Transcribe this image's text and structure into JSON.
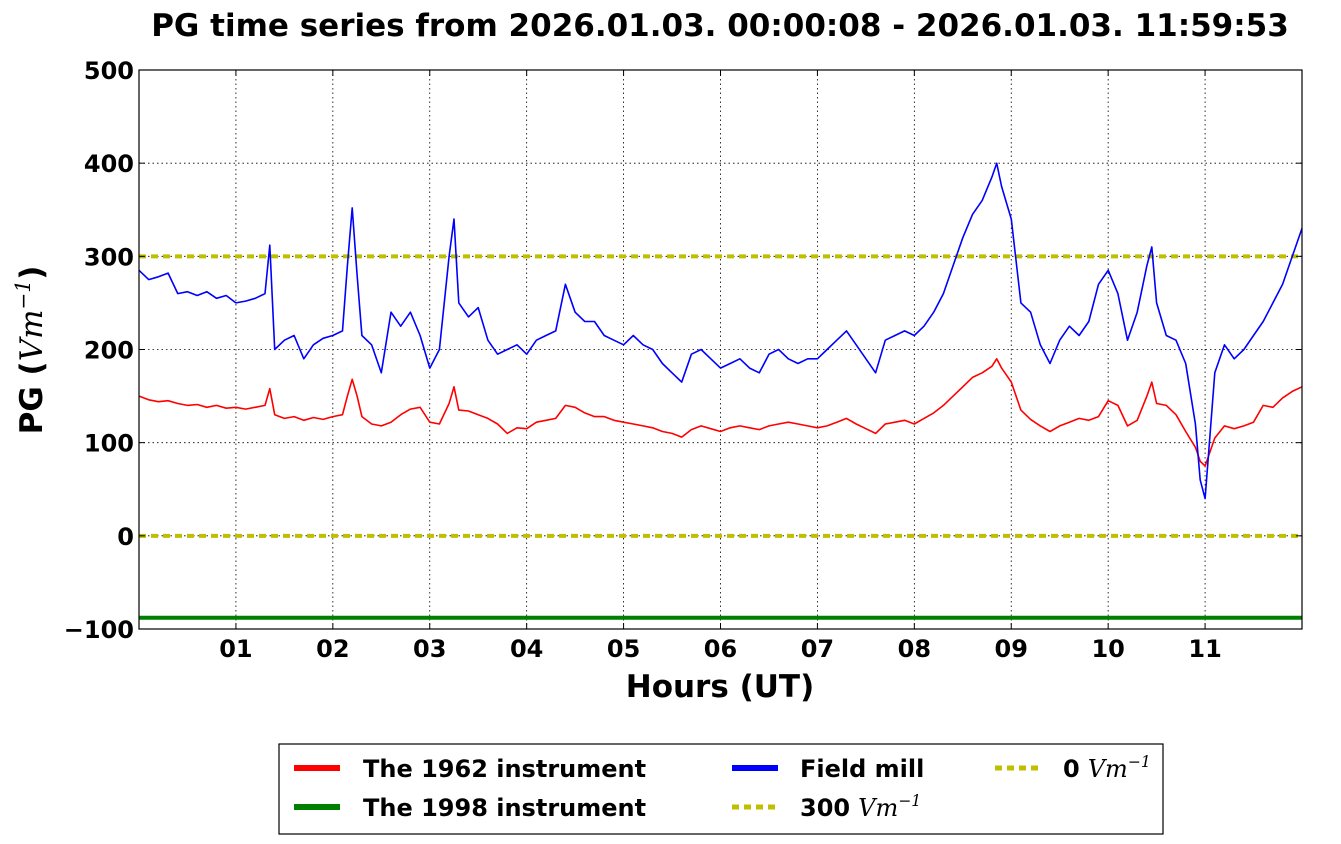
{
  "chart_data": {
    "type": "line",
    "title": "PG time series from 2026.01.03. 00:00:08 - 2026.01.03. 11:59:53",
    "xlabel": "Hours (UT)",
    "ylabel": {
      "prefix": "PG (",
      "unit": "Vm",
      "exponent": "−1",
      "suffix": ")"
    },
    "xlim": [
      0,
      12
    ],
    "ylim": [
      -100,
      500
    ],
    "xticks": [
      1,
      2,
      3,
      4,
      5,
      6,
      7,
      8,
      9,
      10,
      11
    ],
    "xtick_labels": [
      "01",
      "02",
      "03",
      "04",
      "05",
      "06",
      "07",
      "08",
      "09",
      "10",
      "11"
    ],
    "yticks": [
      -100,
      0,
      100,
      200,
      300,
      400,
      500
    ],
    "ytick_labels": [
      "−100",
      "0",
      "100",
      "200",
      "300",
      "400",
      "500"
    ],
    "grid": true,
    "legend_position": "bottom-center",
    "series": [
      {
        "name": "The 1962 instrument",
        "color": "#ff0000",
        "x": [
          0.0,
          0.1,
          0.2,
          0.3,
          0.4,
          0.5,
          0.6,
          0.7,
          0.8,
          0.9,
          1.0,
          1.1,
          1.2,
          1.3,
          1.35,
          1.4,
          1.5,
          1.6,
          1.7,
          1.8,
          1.9,
          2.0,
          2.1,
          2.15,
          2.2,
          2.25,
          2.3,
          2.4,
          2.5,
          2.6,
          2.7,
          2.8,
          2.9,
          3.0,
          3.1,
          3.2,
          3.25,
          3.3,
          3.4,
          3.5,
          3.6,
          3.7,
          3.8,
          3.9,
          4.0,
          4.1,
          4.2,
          4.3,
          4.4,
          4.5,
          4.6,
          4.7,
          4.8,
          4.9,
          5.0,
          5.1,
          5.2,
          5.3,
          5.4,
          5.5,
          5.6,
          5.7,
          5.8,
          5.9,
          6.0,
          6.1,
          6.2,
          6.3,
          6.4,
          6.5,
          6.6,
          6.7,
          6.8,
          6.9,
          7.0,
          7.1,
          7.2,
          7.3,
          7.4,
          7.5,
          7.6,
          7.7,
          7.8,
          7.9,
          8.0,
          8.1,
          8.2,
          8.3,
          8.4,
          8.5,
          8.6,
          8.7,
          8.8,
          8.85,
          8.9,
          9.0,
          9.1,
          9.2,
          9.3,
          9.4,
          9.5,
          9.6,
          9.7,
          9.8,
          9.9,
          10.0,
          10.1,
          10.2,
          10.3,
          10.4,
          10.45,
          10.5,
          10.6,
          10.7,
          10.8,
          10.9,
          10.95,
          11.0,
          11.1,
          11.2,
          11.3,
          11.4,
          11.5,
          11.6,
          11.7,
          11.8,
          11.9,
          12.0
        ],
        "y": [
          150,
          146,
          144,
          145,
          142,
          140,
          141,
          138,
          140,
          137,
          138,
          136,
          138,
          140,
          158,
          130,
          126,
          128,
          124,
          127,
          125,
          128,
          130,
          150,
          168,
          150,
          128,
          120,
          118,
          122,
          130,
          136,
          138,
          122,
          120,
          142,
          160,
          135,
          134,
          130,
          126,
          120,
          110,
          116,
          115,
          122,
          124,
          126,
          140,
          138,
          132,
          128,
          128,
          124,
          122,
          120,
          118,
          116,
          112,
          110,
          106,
          114,
          118,
          115,
          112,
          116,
          118,
          116,
          114,
          118,
          120,
          122,
          120,
          118,
          116,
          118,
          122,
          126,
          120,
          115,
          110,
          120,
          122,
          124,
          120,
          126,
          132,
          140,
          150,
          160,
          170,
          175,
          182,
          190,
          180,
          165,
          135,
          125,
          118,
          112,
          118,
          122,
          126,
          124,
          128,
          145,
          140,
          118,
          124,
          150,
          165,
          142,
          140,
          130,
          112,
          95,
          80,
          75,
          105,
          118,
          115,
          118,
          122,
          140,
          138,
          148,
          155,
          160
        ]
      },
      {
        "name": "The 1998 instrument",
        "color": "#008000",
        "x": [
          0,
          12
        ],
        "y": [
          -88,
          -88
        ]
      },
      {
        "name": "Field mill",
        "color": "#0000ff",
        "x": [
          0.0,
          0.1,
          0.2,
          0.3,
          0.4,
          0.5,
          0.6,
          0.7,
          0.8,
          0.9,
          1.0,
          1.1,
          1.2,
          1.3,
          1.35,
          1.4,
          1.5,
          1.6,
          1.7,
          1.8,
          1.9,
          2.0,
          2.1,
          2.15,
          2.2,
          2.25,
          2.3,
          2.4,
          2.5,
          2.6,
          2.7,
          2.8,
          2.9,
          3.0,
          3.1,
          3.2,
          3.25,
          3.3,
          3.4,
          3.5,
          3.6,
          3.7,
          3.8,
          3.9,
          4.0,
          4.1,
          4.2,
          4.3,
          4.4,
          4.5,
          4.6,
          4.7,
          4.8,
          4.9,
          5.0,
          5.1,
          5.2,
          5.3,
          5.4,
          5.5,
          5.6,
          5.7,
          5.8,
          5.9,
          6.0,
          6.1,
          6.2,
          6.3,
          6.4,
          6.5,
          6.6,
          6.7,
          6.8,
          6.9,
          7.0,
          7.1,
          7.2,
          7.3,
          7.4,
          7.5,
          7.6,
          7.7,
          7.8,
          7.9,
          8.0,
          8.1,
          8.2,
          8.3,
          8.4,
          8.5,
          8.6,
          8.7,
          8.8,
          8.85,
          8.9,
          9.0,
          9.1,
          9.2,
          9.3,
          9.4,
          9.5,
          9.6,
          9.7,
          9.8,
          9.9,
          10.0,
          10.1,
          10.2,
          10.3,
          10.4,
          10.45,
          10.5,
          10.6,
          10.7,
          10.8,
          10.9,
          10.95,
          11.0,
          11.1,
          11.2,
          11.3,
          11.4,
          11.5,
          11.6,
          11.7,
          11.8,
          11.9,
          12.0
        ],
        "y": [
          285,
          275,
          278,
          282,
          260,
          262,
          258,
          262,
          255,
          258,
          250,
          252,
          255,
          260,
          312,
          200,
          210,
          215,
          190,
          205,
          212,
          215,
          220,
          290,
          352,
          280,
          215,
          205,
          175,
          240,
          225,
          240,
          215,
          180,
          200,
          300,
          340,
          250,
          235,
          245,
          210,
          195,
          200,
          205,
          195,
          210,
          215,
          220,
          270,
          240,
          230,
          230,
          215,
          210,
          205,
          215,
          205,
          200,
          185,
          175,
          165,
          195,
          200,
          190,
          180,
          185,
          190,
          180,
          175,
          195,
          200,
          190,
          185,
          190,
          190,
          200,
          210,
          220,
          205,
          190,
          175,
          210,
          215,
          220,
          215,
          225,
          240,
          260,
          290,
          320,
          345,
          360,
          385,
          400,
          375,
          340,
          250,
          240,
          205,
          185,
          210,
          225,
          215,
          230,
          270,
          285,
          260,
          210,
          240,
          290,
          310,
          250,
          215,
          210,
          185,
          120,
          60,
          40,
          175,
          205,
          190,
          200,
          215,
          230,
          250,
          270,
          300,
          330
        ]
      }
    ],
    "reference_lines": [
      {
        "y": 300,
        "color": "#bfbf00",
        "style": "dotted",
        "label_value": "300",
        "label_unit": "Vm",
        "label_exponent": "−1"
      },
      {
        "y": 0,
        "color": "#bfbf00",
        "style": "dotted",
        "label_value": "0",
        "label_unit": "Vm",
        "label_exponent": "−1"
      }
    ]
  }
}
